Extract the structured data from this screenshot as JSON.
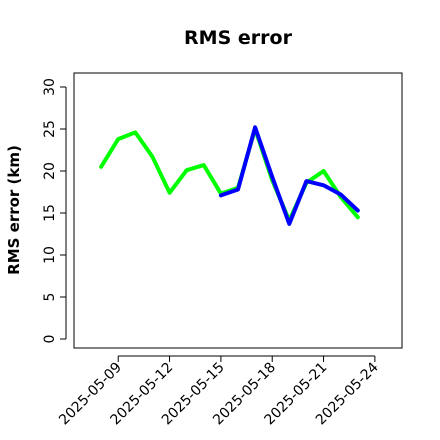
{
  "chart_data": {
    "type": "line",
    "title": "RMS error",
    "xlabel": "",
    "ylabel": "RMS error (km)",
    "ylim": [
      0,
      30
    ],
    "yticks": [
      0,
      5,
      10,
      15,
      20,
      25,
      30
    ],
    "xlim": [
      "2025-05-07",
      "2025-05-25"
    ],
    "xticks": [
      {
        "label": "2025-05-09",
        "color": "#000000"
      },
      {
        "label": "2025-05-12",
        "color": "#000000"
      },
      {
        "label": "2025-05-15",
        "color": "#1a8a1a"
      },
      {
        "label": "2025-05-18",
        "color": "#000000"
      },
      {
        "label": "2025-05-21",
        "color": "#000000"
      },
      {
        "label": "2025-05-24",
        "color": "#000000"
      }
    ],
    "grid": false,
    "legend": "none",
    "series": [
      {
        "color": "#00ff00",
        "x": [
          "2025-05-08",
          "2025-05-09",
          "2025-05-10",
          "2025-05-11",
          "2025-05-12",
          "2025-05-13",
          "2025-05-14",
          "2025-05-15",
          "2025-05-16",
          "2025-05-17",
          "2025-05-18",
          "2025-05-19",
          "2025-05-20",
          "2025-05-21",
          "2025-05-22",
          "2025-05-23"
        ],
        "values": [
          20.5,
          23.8,
          24.6,
          21.7,
          17.4,
          20.1,
          20.7,
          17.3,
          18.0,
          25.0,
          18.9,
          14.1,
          18.6,
          20.0,
          16.9,
          14.5
        ]
      },
      {
        "color": "#0000ff",
        "x": [
          "2025-05-15",
          "2025-05-16",
          "2025-05-17",
          "2025-05-18",
          "2025-05-19",
          "2025-05-20",
          "2025-05-21",
          "2025-05-22",
          "2025-05-23"
        ],
        "values": [
          17.1,
          17.8,
          25.2,
          19.3,
          13.7,
          18.8,
          18.3,
          17.2,
          15.3
        ]
      }
    ]
  }
}
